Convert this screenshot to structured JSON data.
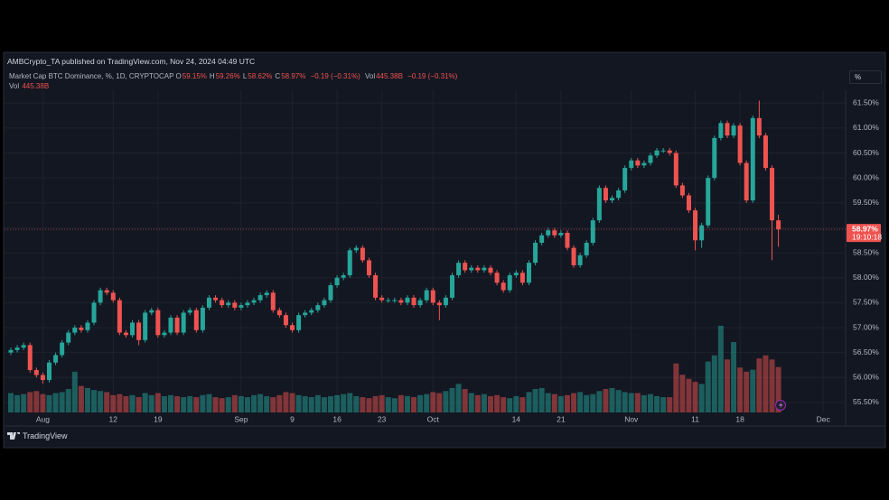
{
  "header": "AMBCrypto_TA published on TradingView.com, Nov 24, 2024 04:49 UTC",
  "footer": "TradingView",
  "chart_data": {
    "type": "candlestick",
    "title": "Market Cap BTC Dominance, %, 1D, CRYPTOCAP",
    "legend_values": [
      {
        "key": "O",
        "value": "59.15%"
      },
      {
        "key": "H",
        "value": "59.26%"
      },
      {
        "key": "L",
        "value": "58.62%"
      },
      {
        "key": "C",
        "value": "58.97%"
      }
    ],
    "change": "−0.19 (−0.31%)",
    "volume_legend": {
      "key": "Vol",
      "value": "445.38B",
      "change": "−0.19 (−0.31%)"
    },
    "volume_label": {
      "key": "Vol",
      "value": "445.38B"
    },
    "scale_button": "%",
    "up_color": "#26a69a",
    "down_color": "#ef5350",
    "grid": true,
    "open": [
      56.5,
      56.55,
      56.6,
      56.65,
      56.15,
      56.05,
      55.95,
      56.3,
      56.45,
      56.7,
      56.9,
      57.0,
      56.95,
      57.1,
      57.5,
      57.75,
      57.7,
      57.55,
      56.9,
      56.85,
      57.1,
      56.75,
      57.3,
      57.35,
      56.85,
      56.9,
      57.2,
      56.9,
      57.3,
      57.35,
      56.95,
      57.4,
      57.6,
      57.55,
      57.45,
      57.5,
      57.4,
      57.45,
      57.5,
      57.55,
      57.65,
      57.7,
      57.35,
      57.25,
      57.05,
      56.95,
      57.25,
      57.3,
      57.35,
      57.45,
      57.55,
      57.85,
      58.0,
      58.05,
      58.55,
      58.6,
      58.35,
      58.05,
      57.6,
      57.55,
      57.55,
      57.55,
      57.5,
      57.6,
      57.45,
      57.55,
      57.75,
      57.5,
      57.45,
      57.6,
      58.05,
      58.3,
      58.15,
      58.2,
      58.15,
      58.2,
      58.1,
      57.9,
      57.75,
      58.05,
      58.1,
      57.9,
      58.3,
      58.7,
      58.85,
      58.95,
      58.85,
      58.9,
      58.6,
      58.25,
      58.45,
      58.7,
      59.15,
      59.8,
      59.55,
      59.6,
      59.75,
      60.2,
      60.35,
      60.25,
      60.3,
      60.45,
      60.55,
      60.55,
      60.5,
      59.85,
      59.65,
      59.35,
      58.75,
      59.05,
      60.0,
      60.8,
      61.1,
      60.85,
      61.05,
      60.3,
      59.55,
      61.2,
      60.85,
      60.2,
      59.15
    ],
    "high": [
      56.6,
      56.65,
      56.7,
      56.7,
      56.2,
      56.1,
      56.35,
      56.5,
      56.75,
      56.95,
      57.05,
      57.05,
      57.15,
      57.55,
      57.8,
      57.8,
      57.75,
      57.6,
      56.95,
      57.15,
      57.15,
      57.35,
      57.4,
      57.4,
      56.95,
      57.25,
      57.25,
      57.35,
      57.4,
      57.4,
      57.45,
      57.65,
      57.65,
      57.6,
      57.55,
      57.55,
      57.5,
      57.55,
      57.6,
      57.7,
      57.75,
      57.75,
      57.4,
      57.3,
      57.1,
      57.3,
      57.35,
      57.4,
      57.5,
      57.6,
      57.9,
      58.05,
      58.1,
      58.6,
      58.65,
      58.65,
      58.4,
      58.1,
      57.65,
      57.6,
      57.6,
      57.6,
      57.65,
      57.65,
      57.6,
      57.8,
      57.8,
      57.55,
      57.65,
      58.1,
      58.35,
      58.35,
      58.25,
      58.25,
      58.25,
      58.25,
      58.15,
      57.95,
      58.1,
      58.15,
      58.15,
      58.35,
      58.75,
      58.9,
      59.0,
      59.0,
      58.95,
      58.95,
      58.65,
      58.5,
      58.75,
      59.2,
      59.85,
      59.85,
      59.65,
      59.8,
      60.25,
      60.4,
      60.4,
      60.35,
      60.5,
      60.6,
      60.6,
      60.6,
      60.55,
      59.9,
      59.7,
      59.4,
      59.1,
      60.05,
      60.85,
      61.15,
      61.15,
      61.1,
      61.1,
      60.35,
      61.25,
      61.55,
      60.9,
      60.25,
      59.26
    ],
    "low": [
      56.45,
      56.5,
      56.55,
      56.1,
      56.0,
      55.88,
      55.9,
      56.25,
      56.4,
      56.65,
      56.85,
      56.9,
      56.9,
      57.05,
      57.45,
      57.65,
      57.5,
      56.85,
      56.8,
      56.8,
      56.65,
      56.7,
      57.25,
      56.8,
      56.8,
      56.85,
      56.85,
      56.85,
      57.25,
      56.9,
      56.9,
      57.35,
      57.5,
      57.4,
      57.4,
      57.35,
      57.35,
      57.4,
      57.45,
      57.5,
      57.6,
      57.3,
      57.2,
      57.0,
      56.9,
      56.9,
      57.2,
      57.25,
      57.3,
      57.4,
      57.5,
      57.8,
      57.95,
      58.0,
      58.5,
      58.3,
      58.0,
      57.55,
      57.5,
      57.5,
      57.5,
      57.45,
      57.45,
      57.4,
      57.4,
      57.5,
      57.45,
      57.15,
      57.4,
      57.55,
      58.0,
      58.1,
      58.1,
      58.1,
      58.1,
      58.05,
      57.85,
      57.7,
      57.7,
      58.0,
      57.85,
      57.85,
      58.25,
      58.65,
      58.8,
      58.8,
      58.8,
      58.55,
      58.2,
      58.2,
      58.4,
      58.65,
      59.1,
      59.5,
      59.5,
      59.55,
      59.7,
      60.15,
      60.2,
      60.2,
      60.25,
      60.4,
      60.5,
      60.45,
      59.8,
      59.6,
      59.3,
      58.55,
      58.6,
      59.0,
      59.95,
      60.75,
      60.8,
      60.8,
      60.25,
      59.5,
      59.5,
      60.8,
      60.15,
      58.35,
      58.62
    ],
    "close": [
      56.55,
      56.6,
      56.65,
      56.15,
      56.05,
      55.95,
      56.3,
      56.45,
      56.7,
      56.9,
      57.0,
      56.95,
      57.1,
      57.5,
      57.75,
      57.7,
      57.55,
      56.9,
      56.85,
      57.1,
      56.75,
      57.3,
      57.35,
      56.85,
      56.9,
      57.2,
      56.9,
      57.3,
      57.35,
      56.95,
      57.4,
      57.6,
      57.55,
      57.45,
      57.5,
      57.4,
      57.45,
      57.5,
      57.55,
      57.65,
      57.7,
      57.35,
      57.25,
      57.05,
      56.95,
      57.25,
      57.3,
      57.35,
      57.45,
      57.55,
      57.85,
      58.0,
      58.05,
      58.55,
      58.6,
      58.35,
      58.05,
      57.6,
      57.55,
      57.55,
      57.55,
      57.5,
      57.6,
      57.45,
      57.55,
      57.75,
      57.5,
      57.45,
      57.6,
      58.05,
      58.3,
      58.15,
      58.2,
      58.15,
      58.2,
      58.1,
      57.9,
      57.75,
      58.05,
      58.1,
      57.9,
      58.3,
      58.7,
      58.85,
      58.95,
      58.85,
      58.9,
      58.6,
      58.25,
      58.45,
      58.7,
      59.15,
      59.8,
      59.55,
      59.6,
      59.75,
      60.2,
      60.35,
      60.25,
      60.3,
      60.45,
      60.55,
      60.55,
      60.5,
      59.85,
      59.65,
      59.35,
      58.75,
      59.05,
      60.0,
      60.8,
      61.1,
      60.85,
      61.05,
      60.3,
      59.55,
      61.2,
      60.85,
      60.2,
      59.15,
      58.97
    ],
    "volume": [
      190,
      170,
      180,
      200,
      210,
      180,
      170,
      190,
      200,
      230,
      400,
      260,
      240,
      220,
      210,
      200,
      170,
      180,
      160,
      170,
      150,
      190,
      170,
      190,
      160,
      170,
      160,
      150,
      160,
      150,
      170,
      180,
      150,
      140,
      150,
      170,
      160,
      150,
      170,
      180,
      160,
      150,
      170,
      200,
      190,
      170,
      160,
      150,
      170,
      150,
      160,
      170,
      180,
      190,
      160,
      150,
      140,
      160,
      170,
      150,
      140,
      170,
      160,
      150,
      170,
      180,
      200,
      190,
      210,
      240,
      280,
      230,
      190,
      170,
      180,
      160,
      170,
      150,
      140,
      160,
      150,
      200,
      230,
      240,
      190,
      180,
      160,
      170,
      190,
      200,
      170,
      180,
      210,
      230,
      240,
      220,
      200,
      190,
      190,
      170,
      180,
      160,
      150,
      150,
      480,
      370,
      330,
      300,
      280,
      500,
      560,
      850,
      520,
      690,
      440,
      400,
      420,
      530,
      560,
      520,
      445.38
    ],
    "ylim": [
      55.3,
      62.3
    ],
    "yticks": [
      {
        "value": 55.5,
        "label": "55.50%"
      },
      {
        "value": 56,
        "label": "56.00%"
      },
      {
        "value": 56.5,
        "label": "56.50%"
      },
      {
        "value": 57,
        "label": "57.00%"
      },
      {
        "value": 57.5,
        "label": "57.50%"
      },
      {
        "value": 58,
        "label": "58.00%"
      },
      {
        "value": 58.5,
        "label": "58.50%"
      },
      {
        "value": 59,
        "label": "59.00%"
      },
      {
        "value": 59.5,
        "label": "59.50%"
      },
      {
        "value": 60,
        "label": "60.00%"
      },
      {
        "value": 60.5,
        "label": "60.50%"
      },
      {
        "value": 61,
        "label": "61.00%"
      },
      {
        "value": 61.5,
        "label": "61.50%"
      }
    ],
    "xticks": [
      {
        "value": 5,
        "label": "Aug"
      },
      {
        "value": 16,
        "label": "12"
      },
      {
        "value": 23,
        "label": "19"
      },
      {
        "value": 36,
        "label": "Sep"
      },
      {
        "value": 44,
        "label": "9"
      },
      {
        "value": 51,
        "label": "16"
      },
      {
        "value": 58,
        "label": "23"
      },
      {
        "value": 66,
        "label": "Oct"
      },
      {
        "value": 79,
        "label": "14"
      },
      {
        "value": 86,
        "label": "21"
      },
      {
        "value": 97,
        "label": "Nov"
      },
      {
        "value": 107,
        "label": "11"
      },
      {
        "value": 114,
        "label": "18"
      },
      {
        "value": 127,
        "label": "Dec"
      }
    ],
    "last_price": {
      "value": 58.97,
      "label": "58.97%"
    },
    "countdown": "19:10:18"
  }
}
